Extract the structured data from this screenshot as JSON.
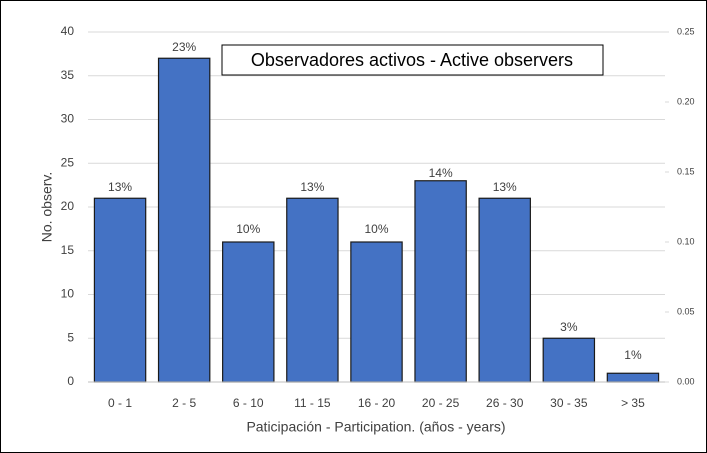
{
  "chart_data": {
    "type": "bar",
    "title": "Observadores activos - Active observers",
    "xlabel": "Paticipación - Participation. (años - years)",
    "ylabel": "No. observ.",
    "categories": [
      "0 - 1",
      "2 - 5",
      "6 - 10",
      "11 - 15",
      "16 - 20",
      "20 - 25",
      "26 - 30",
      "30 - 35",
      "> 35"
    ],
    "series": [
      {
        "color": "#4472c4",
        "values": [
          21,
          37,
          16,
          21,
          16,
          23,
          21,
          5,
          1
        ]
      },
      {
        "axis": "y2",
        "values": [
          0.13,
          0.23,
          0.1,
          0.13,
          0.1,
          0.14,
          0.13,
          0.03,
          0.01
        ],
        "value_labels": [
          "13%",
          "23%",
          "10%",
          "13%",
          "10%",
          "14%",
          "13%",
          "3%",
          "1%"
        ]
      }
    ],
    "ylim": [
      0,
      40
    ],
    "yticks": [
      0,
      5,
      10,
      15,
      20,
      25,
      30,
      35,
      40
    ],
    "y2lim": [
      0,
      0.25
    ],
    "y2ticks": [
      {
        "value": 0,
        "label": "0.00"
      },
      0.05,
      {
        "value": 0.1,
        "label": "0.10"
      },
      0.15,
      {
        "value": 0.2,
        "label": "0.20"
      },
      0.25
    ],
    "grid": true
  }
}
